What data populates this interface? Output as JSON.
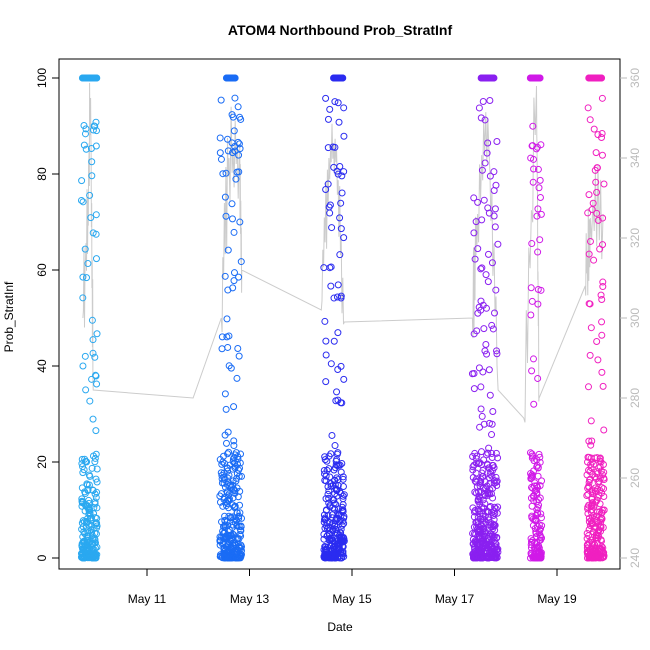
{
  "chart_data": {
    "type": "scatter",
    "title": "ATOM4 Northbound Prob_StratInf",
    "xlabel": "Date",
    "ylabel": "Prob_StratInf",
    "x_ticks": [
      "May 11",
      "May 13",
      "May 15",
      "May 17",
      "May 19"
    ],
    "y_ticks": [
      "0",
      "20",
      "40",
      "60",
      "80",
      "100"
    ],
    "ylim": [
      0,
      100
    ],
    "right_axis": {
      "ticks": [
        "240",
        "260",
        "280",
        "300",
        "320",
        "340",
        "360"
      ],
      "range": [
        240,
        360
      ],
      "color": "#bbbbbb"
    },
    "grid": false,
    "marker": "open-circle",
    "line_color": "#cccccc",
    "groups": [
      {
        "date": "May 9.9",
        "color": "#2aa8f0",
        "x_range": [
          9.72,
          10.03
        ],
        "ones_x": [
          9.74,
          10.02
        ]
      },
      {
        "date": "May 12.7",
        "color": "#1a6cf5",
        "x_range": [
          12.42,
          12.85
        ],
        "ones_x": [
          12.55,
          12.72
        ]
      },
      {
        "date": "May 14.7",
        "color": "#2b2cf0",
        "x_range": [
          14.45,
          14.85
        ],
        "ones_x": [
          14.64,
          14.82
        ]
      },
      {
        "date": "May 17.7",
        "color": "#8a20f0",
        "x_range": [
          17.35,
          17.85
        ],
        "ones_x": [
          17.52,
          17.78
        ]
      },
      {
        "date": "May 18.6",
        "color": "#d01ae8",
        "x_range": [
          18.48,
          18.7
        ],
        "ones_x": [
          18.48,
          18.68
        ]
      },
      {
        "date": "May 19.8",
        "color": "#f020c0",
        "x_range": [
          19.58,
          19.92
        ],
        "ones_x": [
          19.62,
          19.88
        ]
      }
    ],
    "secondary_line": [
      [
        9.75,
        300
      ],
      [
        9.85,
        330
      ],
      [
        9.9,
        355
      ],
      [
        9.95,
        282
      ],
      [
        11.9,
        280
      ],
      [
        12.45,
        300
      ],
      [
        12.6,
        340
      ],
      [
        12.8,
        342
      ],
      [
        12.85,
        312
      ],
      [
        14.4,
        302
      ],
      [
        14.55,
        340
      ],
      [
        14.7,
        342
      ],
      [
        14.85,
        299
      ],
      [
        17.35,
        300
      ],
      [
        17.45,
        326
      ],
      [
        17.65,
        350
      ],
      [
        17.85,
        282
      ],
      [
        18.35,
        275
      ],
      [
        18.6,
        358
      ],
      [
        18.65,
        280
      ],
      [
        19.55,
        308
      ],
      [
        19.65,
        325
      ],
      [
        19.9,
        326
      ]
    ]
  }
}
